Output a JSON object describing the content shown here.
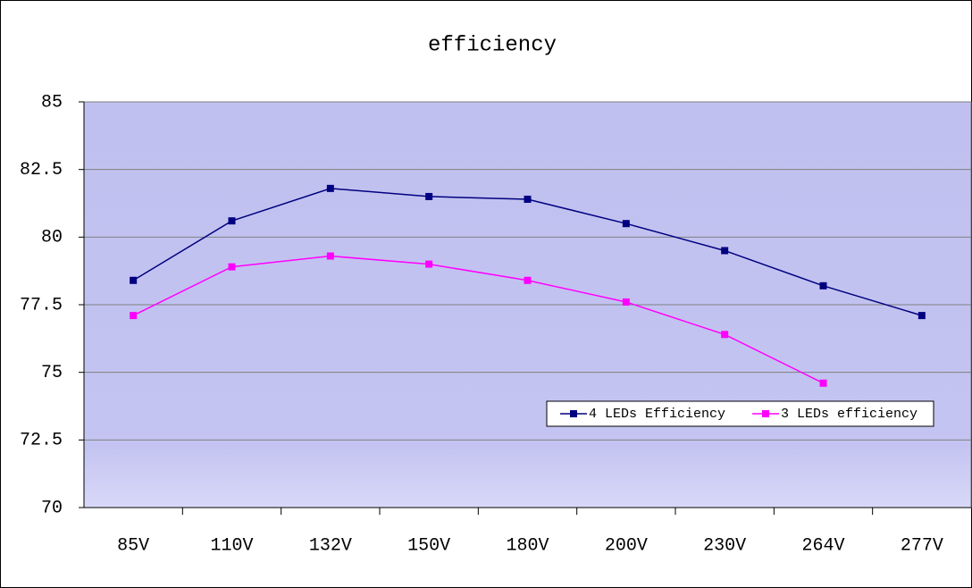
{
  "chart_data": {
    "type": "line",
    "title": "efficiency",
    "categories": [
      "85V",
      "110V",
      "132V",
      "150V",
      "180V",
      "200V",
      "230V",
      "264V",
      "277V"
    ],
    "series": [
      {
        "name": "4 LEDs Efficiency",
        "color": "#000080",
        "values": [
          78.4,
          80.6,
          81.8,
          81.5,
          81.4,
          80.5,
          79.5,
          78.2,
          77.1
        ]
      },
      {
        "name": "3 LEDs efficiency",
        "color": "#ff00ff",
        "values": [
          77.1,
          78.9,
          79.3,
          79.0,
          78.4,
          77.6,
          76.4,
          74.6,
          null
        ]
      }
    ],
    "ylim": [
      70,
      85
    ],
    "yticks": [
      70,
      72.5,
      75,
      77.5,
      80,
      82.5,
      85
    ],
    "grid": true,
    "legend": "lower right"
  }
}
